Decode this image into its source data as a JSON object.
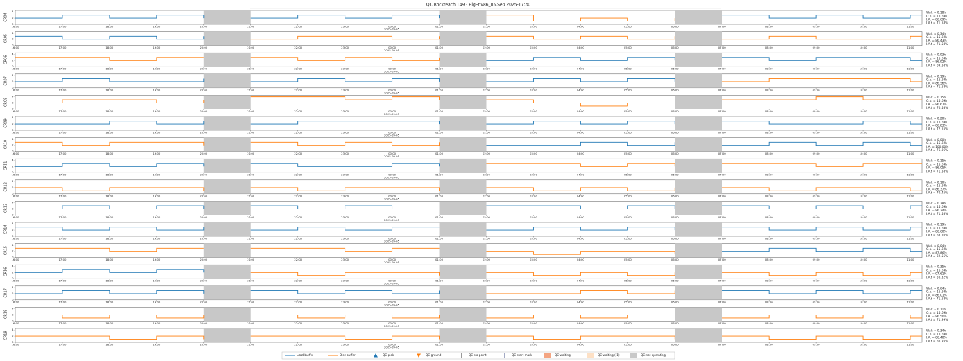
{
  "chart_data": {
    "type": "step",
    "title": "QC Rockreach 149 - BigEnv86_05.Sep 2025-17:30",
    "date_label": "2025-09-05",
    "x": [
      16,
      17,
      18,
      19,
      20,
      21,
      22,
      23,
      24,
      25,
      26,
      27,
      28,
      29,
      30,
      31,
      32,
      33,
      34,
      35
    ],
    "xlim": [
      16,
      35.25
    ],
    "xticks": [
      {
        "value": 16,
        "label": "16:00"
      },
      {
        "value": 17,
        "label": "17:00"
      },
      {
        "value": 18,
        "label": "18:00"
      },
      {
        "value": 19,
        "label": "19:00"
      },
      {
        "value": 20,
        "label": "20:00"
      },
      {
        "value": 21,
        "label": "21:00"
      },
      {
        "value": 22,
        "label": "22:00"
      },
      {
        "value": 23,
        "label": "23:00"
      },
      {
        "value": 24,
        "label": "00:00"
      },
      {
        "value": 25,
        "label": "01:00"
      },
      {
        "value": 26,
        "label": "02:00"
      },
      {
        "value": 27,
        "label": "03:00"
      },
      {
        "value": 28,
        "label": "04:00"
      },
      {
        "value": 29,
        "label": "05:00"
      },
      {
        "value": 30,
        "label": "06:00"
      },
      {
        "value": 31,
        "label": "07:00"
      },
      {
        "value": 32,
        "label": "08:00"
      },
      {
        "value": 33,
        "label": "09:00"
      },
      {
        "value": 34,
        "label": "10:00"
      },
      {
        "value": 35,
        "label": "11:00"
      }
    ],
    "ylim": [
      0,
      4.5
    ],
    "yticks": [
      0,
      2,
      4
    ],
    "not_operating": [
      [
        20,
        21
      ],
      [
        25,
        26
      ],
      [
        30,
        31
      ]
    ],
    "segments": [
      [
        16,
        20
      ],
      [
        21,
        25
      ],
      [
        26,
        30
      ],
      [
        31,
        35.25
      ]
    ],
    "legend": [
      {
        "name": "Load buffer",
        "color": "#1f77b4",
        "kind": "line"
      },
      {
        "name": "Disc buffer",
        "color": "#ff7f0e",
        "kind": "line"
      },
      {
        "name": "QC pick",
        "color": "#1f77b4",
        "kind": "up"
      },
      {
        "name": "QC ground",
        "color": "#ff7f0e",
        "kind": "down"
      },
      {
        "name": "QC slo point",
        "color": "#000000",
        "kind": "tick"
      },
      {
        "name": "QC start mark",
        "color": "#1a2a6c",
        "kind": "tick"
      },
      {
        "name": "QC waiting",
        "color": "#f4a582",
        "kind": "box"
      },
      {
        "name": "QC waiting (-1)",
        "color": "#fde0c5",
        "kind": "box"
      },
      {
        "name": "QC not operating",
        "color": "#c8c8c8",
        "kind": "box"
      }
    ],
    "rows": [
      {
        "label": "CR04",
        "segment_series": [
          0,
          0,
          1,
          0
        ],
        "values": [
          2,
          3,
          2,
          3,
          2,
          2,
          3,
          2,
          3,
          2,
          3,
          1,
          2,
          1,
          2,
          3,
          2,
          3,
          2,
          3
        ],
        "stats": [
          "Walt = 0.18h",
          "O.p. = 15.69h",
          "I.A. = 86.69%",
          "I.A.t = 71.58%"
        ]
      },
      {
        "label": "CR05",
        "segment_series": [
          0,
          1,
          1,
          1
        ],
        "values": [
          3,
          2,
          3,
          2,
          3,
          2,
          3,
          3,
          2,
          3,
          3,
          2,
          3,
          2,
          3,
          2,
          3,
          2,
          2,
          3
        ],
        "stats": [
          "Walt = 0.34h",
          "O.p. = 15.69h",
          "I.A. = 86.43%",
          "I.A.t = 71.58%"
        ]
      },
      {
        "label": "CR06",
        "segment_series": [
          1,
          1,
          0,
          0
        ],
        "values": [
          3,
          3,
          2,
          3,
          3,
          3,
          2,
          3,
          2,
          3,
          2,
          3,
          2,
          3,
          2,
          3,
          2,
          3,
          3,
          2
        ],
        "stats": [
          "Walt = 0.03h",
          "O.p. = 15.69h",
          "I.A. = 86.92%",
          "I.A.t = 69.58%"
        ]
      },
      {
        "label": "CR07",
        "segment_series": [
          0,
          0,
          0,
          1
        ],
        "values": [
          2,
          3,
          2,
          2,
          3,
          2,
          3,
          2,
          3,
          2,
          2,
          3,
          2,
          3,
          2,
          2,
          3,
          3,
          3,
          2
        ],
        "stats": [
          "Walt = 0.19h",
          "O.p. = 15.69h",
          "I.A. = 86.56%",
          "I.A.t = 71.58%"
        ]
      },
      {
        "label": "CR08",
        "segment_series": [
          1,
          1,
          1,
          1
        ],
        "values": [
          2,
          3,
          3,
          2,
          3,
          4,
          4,
          3,
          4,
          3,
          3,
          2,
          1,
          2,
          2,
          3,
          3,
          4,
          3,
          3
        ],
        "stats": [
          "Walt = 0.15h",
          "O.p. = 15.69h",
          "I.A. = 86.67%",
          "I.A.t = 70.58%"
        ]
      },
      {
        "label": "CR09",
        "segment_series": [
          0,
          0,
          0,
          0
        ],
        "values": [
          2,
          2,
          3,
          2,
          3,
          2,
          3,
          3,
          3,
          2,
          2,
          3,
          2,
          3,
          2,
          3,
          2,
          2,
          3,
          2
        ],
        "stats": [
          "Walt = 0.20h",
          "O.p. = 15.69h",
          "I.A. = 86.83%",
          "I.A.t = 72.55%"
        ]
      },
      {
        "label": "CR10",
        "segment_series": [
          1,
          1,
          0,
          0
        ],
        "values": [
          3,
          2,
          3,
          3,
          2,
          3,
          2,
          3,
          2,
          3,
          2,
          2,
          3,
          2,
          3,
          2,
          3,
          2,
          3,
          2
        ],
        "stats": [
          "Walt = 0.00h",
          "O.p. = 15.69h",
          "I.A. = 100.00%",
          "I.A.t = 76.06%"
        ]
      },
      {
        "label": "CR11",
        "segment_series": [
          0,
          0,
          1,
          1
        ],
        "values": [
          2,
          3,
          2,
          3,
          2,
          3,
          2,
          2,
          3,
          2,
          3,
          3,
          2,
          3,
          2,
          3,
          3,
          2,
          3,
          3
        ],
        "stats": [
          "Walt = 0.15h",
          "O.p. = 15.69h",
          "I.A. = 86.05%",
          "I.A.t = 71.58%"
        ]
      },
      {
        "label": "CR12",
        "segment_series": [
          1,
          1,
          1,
          1
        ],
        "values": [
          2,
          1,
          2,
          2,
          1,
          2,
          1,
          2,
          2,
          1,
          2,
          1,
          2,
          1,
          2,
          2,
          1,
          2,
          2,
          1
        ],
        "stats": [
          "Walt = 0.10h",
          "O.p. = 15.69h",
          "I.A. = 86.37%",
          "I.A.t = 70.45%"
        ]
      },
      {
        "label": "CR13",
        "segment_series": [
          0,
          0,
          0,
          0
        ],
        "values": [
          2,
          3,
          2,
          3,
          2,
          3,
          2,
          3,
          2,
          2,
          3,
          3,
          2,
          3,
          2,
          3,
          2,
          3,
          2,
          3
        ],
        "stats": [
          "Walt = 0.28h",
          "O.p. = 15.69h",
          "I.A. = 86.24%",
          "I.A.t = 71.58%"
        ]
      },
      {
        "label": "CR14",
        "segment_series": [
          0,
          0,
          0,
          0
        ],
        "values": [
          3,
          2,
          3,
          2,
          3,
          2,
          3,
          2,
          3,
          3,
          2,
          3,
          2,
          3,
          2,
          3,
          2,
          3,
          2,
          3
        ],
        "stats": [
          "Walt = 0.19h",
          "O.p. = 15.69h",
          "I.A. = 86.60%",
          "I.A.t = 68.56%"
        ]
      },
      {
        "label": "CR15",
        "segment_series": [
          1,
          1,
          1,
          0
        ],
        "values": [
          3,
          3,
          2,
          3,
          3,
          3,
          3,
          2,
          3,
          3,
          2,
          1,
          2,
          2,
          1,
          2,
          3,
          2,
          3,
          2
        ],
        "stats": [
          "Walt = 0.04h",
          "O.p. = 15.69h",
          "I.A. = 87.86%",
          "I.A.t = 69.55%"
        ]
      },
      {
        "label": "CR16",
        "segment_series": [
          0,
          1,
          1,
          1
        ],
        "values": [
          2,
          3,
          2,
          3,
          2,
          2,
          1,
          2,
          2,
          1,
          2,
          1,
          2,
          1,
          2,
          2,
          1,
          2,
          1,
          2
        ],
        "stats": [
          "Walt = 0.35h",
          "O.p. = 15.69h",
          "I.A. = 97.61%",
          "I.A.t = 56.32%"
        ]
      },
      {
        "label": "CR17",
        "segment_series": [
          0,
          0,
          1,
          0
        ],
        "values": [
          2,
          3,
          2,
          3,
          2,
          3,
          2,
          3,
          2,
          3,
          2,
          2,
          3,
          2,
          3,
          3,
          2,
          3,
          2,
          3
        ],
        "stats": [
          "Walt = 0.64h",
          "O.p. = 15.69h",
          "I.A. = 86.01%",
          "I.A.t = 71.58%"
        ]
      },
      {
        "label": "CR18",
        "segment_series": [
          1,
          1,
          1,
          1
        ],
        "values": [
          2,
          1,
          2,
          1,
          2,
          2,
          1,
          2,
          1,
          2,
          1,
          2,
          1,
          2,
          2,
          1,
          2,
          1,
          2,
          1
        ],
        "stats": [
          "Walt = 0.11h",
          "O.p. = 15.69h",
          "I.A. = 86.50%",
          "I.A.t = 71.99%"
        ]
      },
      {
        "label": "CR19",
        "segment_series": [
          1,
          1,
          1,
          1
        ],
        "values": [
          2,
          2,
          1,
          2,
          1,
          2,
          2,
          1,
          2,
          1,
          2,
          1,
          2,
          2,
          1,
          2,
          1,
          2,
          1,
          2
        ],
        "stats": [
          "Walt = 0.34h",
          "O.p. = 15.69h",
          "I.A. = 86.40%",
          "I.A.t = 66.95%"
        ]
      }
    ]
  }
}
